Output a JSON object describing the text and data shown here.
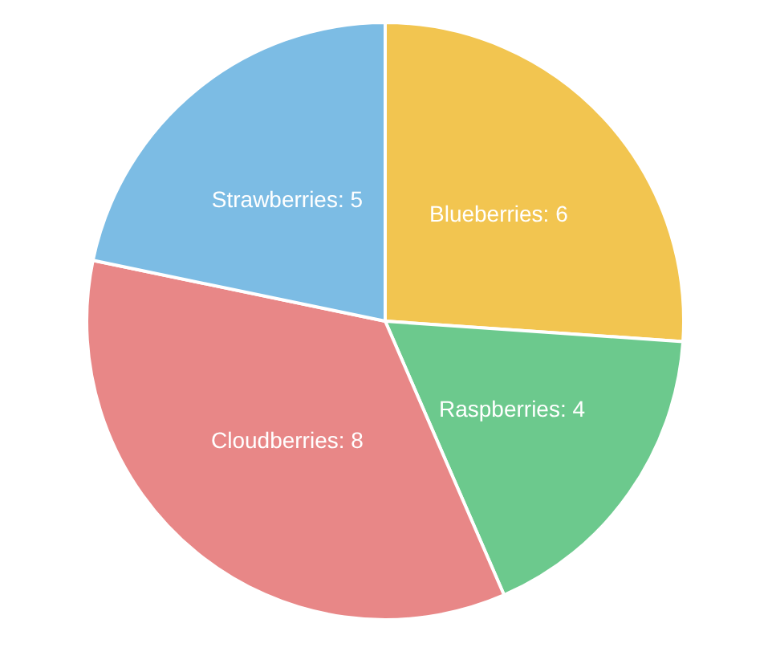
{
  "chart_data": {
    "type": "pie",
    "categories": [
      "Blueberries",
      "Raspberries",
      "Cloudberries",
      "Strawberries"
    ],
    "values": [
      6,
      4,
      8,
      5
    ],
    "value_labels": [
      ": 6",
      ": 4",
      ": 8",
      ": 5"
    ],
    "colors": [
      "#f2c550",
      "#6cc98d",
      "#e88787",
      "#7cbce4"
    ],
    "legend": false
  }
}
